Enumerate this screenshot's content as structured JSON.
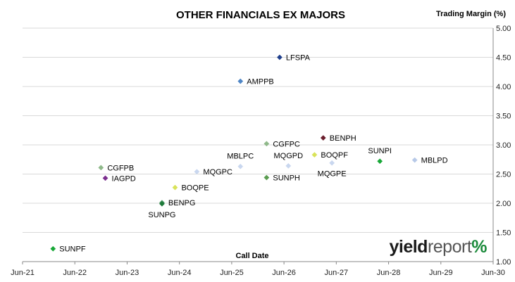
{
  "chart_data": {
    "type": "scatter",
    "title": "OTHER FINANCIALS EX MAJORS",
    "xlabel": "Call Date",
    "ylabel": "Trading Margin (%)",
    "x_ticks": [
      "Jun-21",
      "Jun-22",
      "Jun-23",
      "Jun-24",
      "Jun-25",
      "Jun-26",
      "Jun-27",
      "Jun-28",
      "Jun-29",
      "Jun-30"
    ],
    "y_ticks": [
      "1.00",
      "1.50",
      "2.00",
      "2.50",
      "3.00",
      "3.50",
      "4.00",
      "4.50",
      "5.00"
    ],
    "xlim": [
      "2021-06",
      "2030-06"
    ],
    "ylim": [
      1.0,
      5.0
    ],
    "y_axis_side": "right",
    "grid": "horizontal",
    "points": [
      {
        "label": "LFSPA",
        "x": "2026-05",
        "y": 4.5,
        "color": "#1f3f8c",
        "label_pos": "right"
      },
      {
        "label": "AMPPB",
        "x": "2025-08",
        "y": 4.09,
        "color": "#4f86c6",
        "label_pos": "right"
      },
      {
        "label": "BENPH",
        "x": "2027-03",
        "y": 3.12,
        "color": "#6b1f2e",
        "label_pos": "right"
      },
      {
        "label": "CGFPC",
        "x": "2026-02",
        "y": 3.02,
        "color": "#8fb98a",
        "label_pos": "right"
      },
      {
        "label": "BOQPF",
        "x": "2027-01",
        "y": 2.83,
        "color": "#d9e35a",
        "label_pos": "right"
      },
      {
        "label": "MBLPD",
        "x": "2028-12",
        "y": 2.74,
        "color": "#b7c9e8",
        "label_pos": "right"
      },
      {
        "label": "SUNPI",
        "x": "2028-04",
        "y": 2.72,
        "color": "#19a838",
        "label_pos": "above"
      },
      {
        "label": "MQGPE",
        "x": "2027-05",
        "y": 2.69,
        "color": "#c9d7ef",
        "label_pos": "below"
      },
      {
        "label": "MQGPD",
        "x": "2026-07",
        "y": 2.64,
        "color": "#c9d7ef",
        "label_pos": "above"
      },
      {
        "label": "MBLPC",
        "x": "2025-08",
        "y": 2.63,
        "color": "#c9d7ef",
        "label_pos": "above"
      },
      {
        "label": "CGFPB",
        "x": "2022-12",
        "y": 2.61,
        "color": "#8fb98a",
        "label_pos": "right"
      },
      {
        "label": "MQGPC",
        "x": "2024-10",
        "y": 2.54,
        "color": "#c9d7ef",
        "label_pos": "right"
      },
      {
        "label": "SUNPH",
        "x": "2026-02",
        "y": 2.44,
        "color": "#5a9c50",
        "label_pos": "right"
      },
      {
        "label": "IAGPD",
        "x": "2023-01",
        "y": 2.43,
        "color": "#7b2e8e",
        "label_pos": "right"
      },
      {
        "label": "BOQPE",
        "x": "2024-05",
        "y": 2.27,
        "color": "#d9e35a",
        "label_pos": "right"
      },
      {
        "label": "BENPG",
        "x": "2024-02",
        "y": 2.01,
        "color": "#4f9a68",
        "label_pos": "right"
      },
      {
        "label": "SUNPG",
        "x": "2024-02",
        "y": 1.99,
        "color": "#1e7a3a",
        "label_pos": "below"
      },
      {
        "label": "SUNPF",
        "x": "2022-01",
        "y": 1.22,
        "color": "#19a838",
        "label_pos": "right"
      }
    ]
  },
  "brand": {
    "part1": "yield",
    "part2": "report",
    "part3": "%"
  }
}
